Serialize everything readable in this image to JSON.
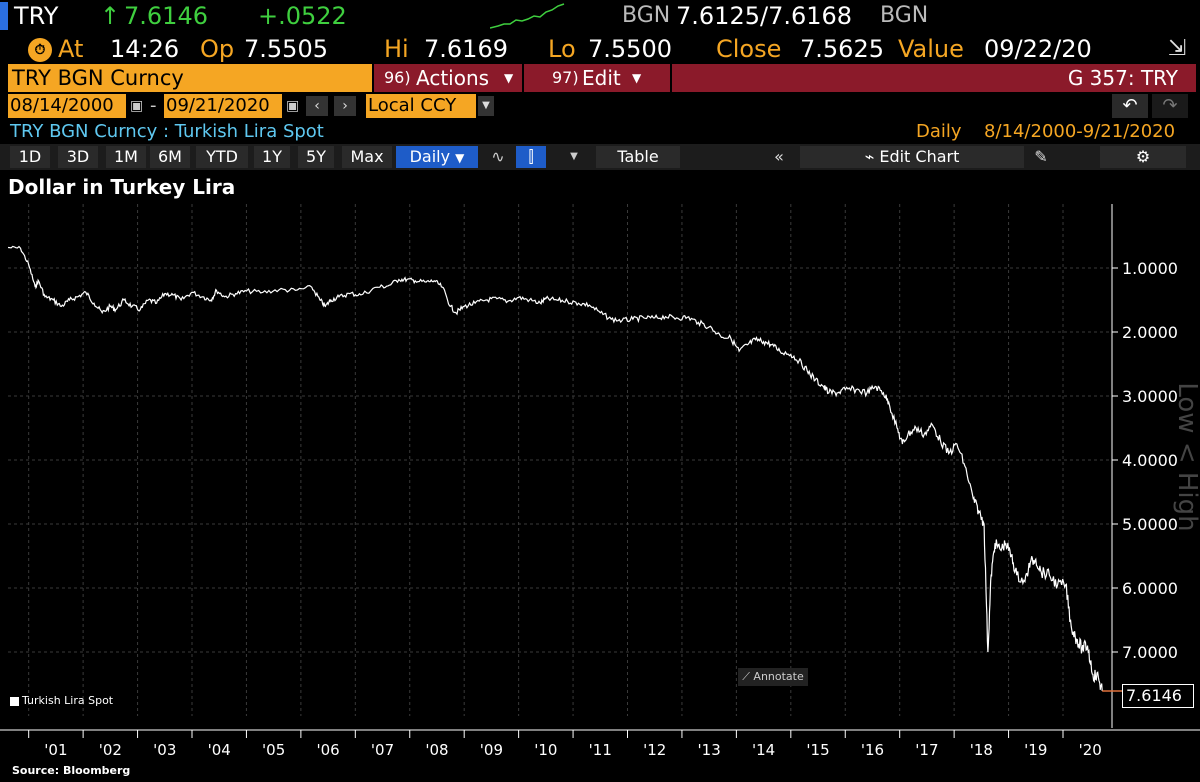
{
  "header": {
    "ticker": "TRY",
    "last": "7.6146",
    "change": "+.0522",
    "source": "BGN",
    "bid_ask": "7.6125/7.6168",
    "source2": "BGN",
    "at_label": "At",
    "time": "14:26",
    "op_label": "Op",
    "open": "7.5505",
    "hi_label": "Hi",
    "high": "7.6169",
    "lo_label": "Lo",
    "low": "7.5500",
    "close_label": "Close",
    "close": "7.5625",
    "value_label": "Value",
    "value_date": "09/22/20"
  },
  "toolbar": {
    "security": "TRY BGN Curncy",
    "actions_num": "96)",
    "actions_label": "Actions",
    "edit_num": "97)",
    "edit_label": "Edit",
    "function_label": "G 357: TRY"
  },
  "date_range": {
    "start": "08/14/2000",
    "dash": "-",
    "end": "09/21/2020",
    "currency": "Local CCY"
  },
  "info": {
    "description": "TRY BGN Curncy : Turkish Lira Spot",
    "frequency": "Daily",
    "period": "8/14/2000-9/21/2020"
  },
  "periods": [
    "1D",
    "3D",
    "1M",
    "6M",
    "YTD",
    "1Y",
    "5Y",
    "Max"
  ],
  "period_selector": "Daily",
  "table_label": "Table",
  "edit_chart_label": "Edit Chart",
  "chart_data": {
    "type": "line",
    "title": "Dollar in Turkey Lira",
    "ylabel": "Low < High",
    "y_inverted": true,
    "ylim": [
      0.0,
      8.0
    ],
    "yticks": [
      "1.0000",
      "2.0000",
      "3.0000",
      "4.0000",
      "5.0000",
      "6.0000",
      "7.0000"
    ],
    "xticks": [
      "'01",
      "'02",
      "'03",
      "'04",
      "'05",
      "'06",
      "'07",
      "'08",
      "'09",
      "'10",
      "'11",
      "'12",
      "'13",
      "'14",
      "'15",
      "'16",
      "'17",
      "'18",
      "'19",
      "'20"
    ],
    "legend": "Turkish Lira Spot",
    "last_value_label": "7.6146",
    "annotate_label": "Annotate",
    "source": "Source: Bloomberg",
    "series": [
      {
        "name": "Turkish Lira Spot",
        "color": "#ffffff",
        "x": [
          2000.62,
          2000.85,
          2001.0,
          2001.12,
          2001.18,
          2001.3,
          2001.45,
          2001.6,
          2001.75,
          2001.9,
          2002.05,
          2002.2,
          2002.35,
          2002.5,
          2002.6,
          2002.75,
          2002.9,
          2003.05,
          2003.2,
          2003.35,
          2003.5,
          2003.65,
          2003.8,
          2004.0,
          2004.2,
          2004.35,
          2004.45,
          2004.6,
          2004.8,
          2005.0,
          2005.3,
          2005.6,
          2005.9,
          2006.2,
          2006.35,
          2006.45,
          2006.55,
          2006.7,
          2006.9,
          2007.1,
          2007.4,
          2007.6,
          2007.8,
          2007.95,
          2008.1,
          2008.3,
          2008.45,
          2008.6,
          2008.75,
          2008.85,
          2009.0,
          2009.2,
          2009.4,
          2009.6,
          2009.8,
          2010.0,
          2010.2,
          2010.4,
          2010.5,
          2010.7,
          2010.9,
          2011.1,
          2011.3,
          2011.5,
          2011.7,
          2011.9,
          2012.1,
          2012.3,
          2012.5,
          2012.7,
          2012.9,
          2013.1,
          2013.3,
          2013.5,
          2013.7,
          2013.9,
          2014.05,
          2014.2,
          2014.35,
          2014.5,
          2014.65,
          2014.8,
          2015.0,
          2015.15,
          2015.3,
          2015.45,
          2015.6,
          2015.7,
          2015.85,
          2016.0,
          2016.2,
          2016.4,
          2016.55,
          2016.7,
          2016.8,
          2016.95,
          2017.05,
          2017.15,
          2017.3,
          2017.45,
          2017.6,
          2017.75,
          2017.9,
          2018.05,
          2018.2,
          2018.35,
          2018.45,
          2018.55,
          2018.62,
          2018.68,
          2018.75,
          2018.85,
          2018.95,
          2019.05,
          2019.15,
          2019.3,
          2019.4,
          2019.5,
          2019.6,
          2019.75,
          2019.9,
          2020.05,
          2020.15,
          2020.25,
          2020.35,
          2020.45,
          2020.55,
          2020.65,
          2020.72
        ],
        "y": [
          0.68,
          0.69,
          0.95,
          1.3,
          1.2,
          1.45,
          1.5,
          1.6,
          1.5,
          1.45,
          1.38,
          1.55,
          1.7,
          1.6,
          1.65,
          1.5,
          1.6,
          1.65,
          1.5,
          1.55,
          1.4,
          1.42,
          1.5,
          1.38,
          1.45,
          1.5,
          1.35,
          1.45,
          1.4,
          1.36,
          1.38,
          1.34,
          1.35,
          1.3,
          1.5,
          1.6,
          1.5,
          1.45,
          1.4,
          1.42,
          1.3,
          1.28,
          1.18,
          1.18,
          1.2,
          1.22,
          1.2,
          1.3,
          1.6,
          1.7,
          1.6,
          1.55,
          1.5,
          1.48,
          1.52,
          1.46,
          1.5,
          1.55,
          1.48,
          1.5,
          1.52,
          1.55,
          1.58,
          1.7,
          1.8,
          1.82,
          1.8,
          1.78,
          1.78,
          1.76,
          1.78,
          1.77,
          1.85,
          1.92,
          2.05,
          2.1,
          2.3,
          2.2,
          2.12,
          2.15,
          2.2,
          2.3,
          2.35,
          2.45,
          2.6,
          2.75,
          2.85,
          2.95,
          2.95,
          2.9,
          2.9,
          2.95,
          2.85,
          2.95,
          3.1,
          3.5,
          3.75,
          3.6,
          3.5,
          3.6,
          3.45,
          3.7,
          3.9,
          3.75,
          4.1,
          4.6,
          4.8,
          5.0,
          7.0,
          5.8,
          5.3,
          5.4,
          5.3,
          5.5,
          5.8,
          5.9,
          5.6,
          5.55,
          5.75,
          5.8,
          5.95,
          5.95,
          6.6,
          6.8,
          6.95,
          6.9,
          7.35,
          7.4,
          7.61
        ]
      }
    ]
  }
}
